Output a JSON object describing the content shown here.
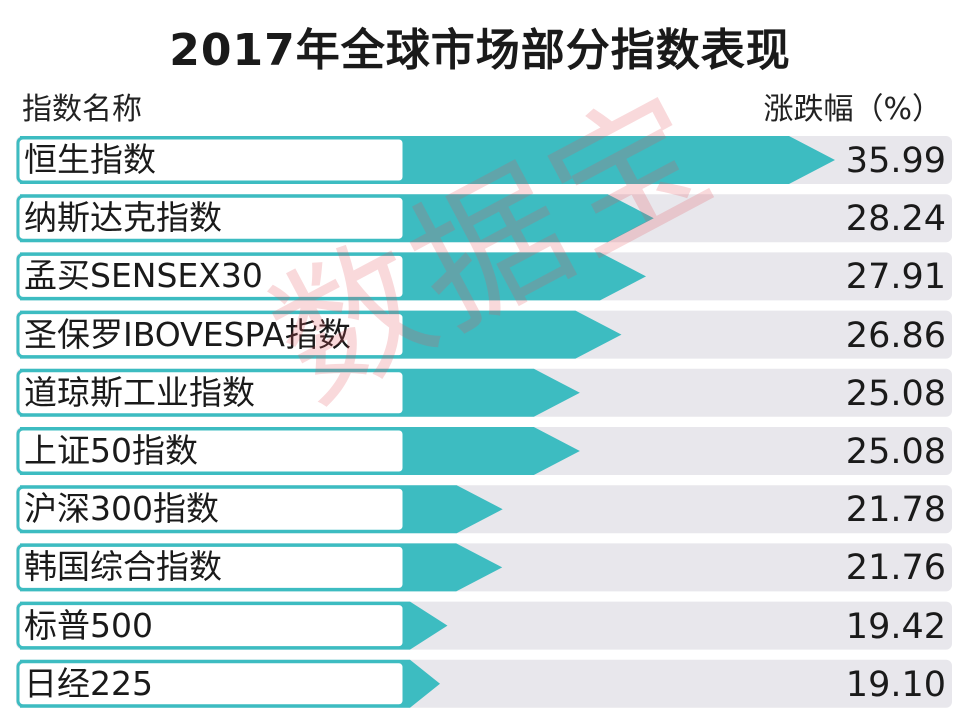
{
  "title": "2017年全球市场部分指数表现",
  "header": {
    "left": "指数名称",
    "right": "涨跌幅（%）"
  },
  "watermark": "数据宝",
  "colors": {
    "bar": "#3dbcc1",
    "row_bg": "#e8e7ec",
    "border": "#3dbcc1"
  },
  "chart_data": {
    "type": "bar",
    "title": "2017年全球市场部分指数表现",
    "xlabel": "指数名称",
    "ylabel": "涨跌幅（%）",
    "categories": [
      "恒生指数",
      "纳斯达克指数",
      "孟买SENSEX30",
      "圣保罗IBOVESPA指数",
      "道琼斯工业指数",
      "上证50指数",
      "沪深300指数",
      "韩国综合指数",
      "标普500",
      "日经225"
    ],
    "values": [
      35.99,
      28.24,
      27.91,
      26.86,
      25.08,
      25.08,
      21.78,
      21.76,
      19.42,
      19.1
    ],
    "value_labels": [
      "35.99",
      "28.24",
      "27.91",
      "26.86",
      "25.08",
      "25.08",
      "21.78",
      "21.76",
      "19.42",
      "19.10"
    ]
  }
}
